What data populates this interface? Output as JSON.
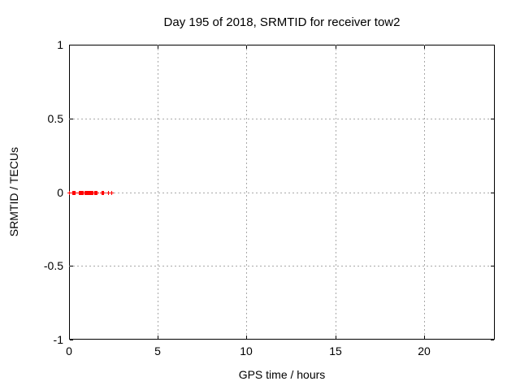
{
  "chart_data": {
    "type": "scatter",
    "title": "Day 195 of 2018, SRMTID for receiver tow2",
    "xlabel": "GPS time / hours",
    "ylabel": "SRMTID / TECUs",
    "xlim": [
      0,
      24
    ],
    "ylim": [
      -1,
      1
    ],
    "xticks": [
      0,
      5,
      10,
      15,
      20
    ],
    "yticks": [
      -1,
      -0.5,
      0,
      0.5,
      1
    ],
    "grid": true,
    "legend_position": "none",
    "series": [
      {
        "name": "SRMTID",
        "marker": "plus",
        "color": "#ff0000",
        "x": [
          0.0,
          0.18,
          0.22,
          0.27,
          0.32,
          0.55,
          0.6,
          0.65,
          0.7,
          0.75,
          0.8,
          0.85,
          0.9,
          0.95,
          1.0,
          1.05,
          1.1,
          1.15,
          1.2,
          1.25,
          1.3,
          1.35,
          1.4,
          1.45,
          1.5,
          1.55,
          1.82,
          1.87,
          1.93,
          2.2,
          2.38
        ],
        "y": [
          0,
          0,
          0,
          0,
          0,
          0,
          0,
          0,
          0,
          0,
          0,
          0,
          0,
          0,
          0,
          0,
          0,
          0,
          0,
          0,
          0,
          0,
          0,
          0,
          0,
          0,
          0,
          0,
          0,
          0,
          0
        ]
      }
    ]
  },
  "colors": {
    "marker": "#ff0000",
    "axis": "#000000",
    "grid": "#a8a8a8",
    "text": "#000000",
    "background": "#ffffff"
  }
}
